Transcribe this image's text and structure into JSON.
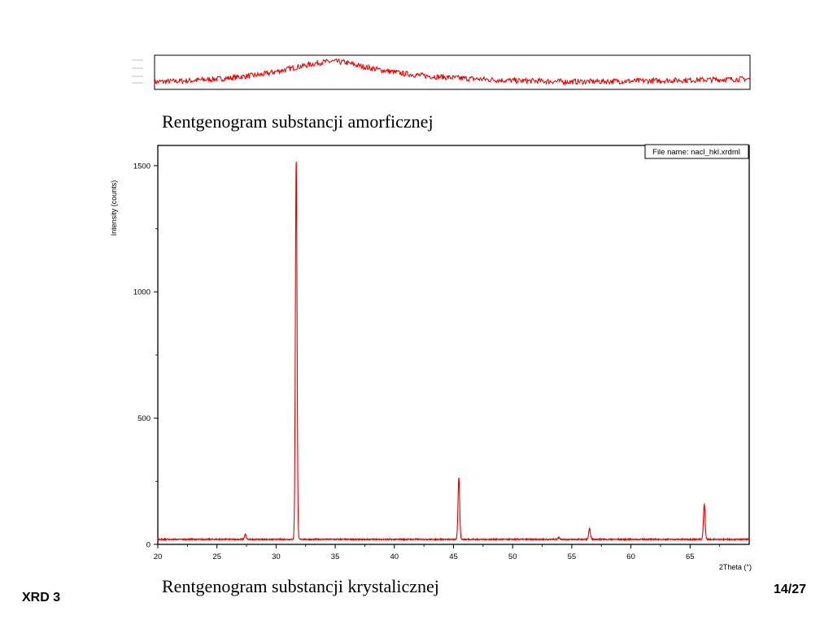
{
  "captions": {
    "amorphous": "Rentgenogram substancji amorficznej",
    "crystalline": "Rentgenogram substancji krystalicznej"
  },
  "footer": {
    "left": "XRD 3",
    "right": "14/27"
  },
  "colors": {
    "trace": "#e00000",
    "axis": "#000000",
    "background": "#ffffff"
  },
  "chart_data": [
    {
      "id": "amorphous",
      "type": "line",
      "description_free": true,
      "ylabel": "",
      "xlabel": "",
      "x": [
        20,
        23,
        26,
        29,
        31,
        33,
        34,
        35,
        36,
        37,
        39,
        41,
        43,
        46,
        50,
        55,
        60,
        65,
        70
      ],
      "y": [
        0.15,
        0.2,
        0.28,
        0.42,
        0.6,
        0.78,
        0.86,
        0.9,
        0.86,
        0.75,
        0.58,
        0.45,
        0.36,
        0.28,
        0.2,
        0.16,
        0.18,
        0.22,
        0.26
      ],
      "xlim": [
        20,
        70
      ],
      "ylim": [
        0,
        1
      ],
      "grid": false
    },
    {
      "id": "crystalline",
      "type": "line",
      "legend_box": "File name: nacl_hkl.xrdml",
      "xlabel": "2Theta (°)",
      "ylabel": "Intensity (counts)",
      "xlim": [
        20,
        70
      ],
      "ylim": [
        0,
        1500
      ],
      "x_ticks": [
        20,
        25,
        30,
        35,
        40,
        45,
        50,
        55,
        60,
        65
      ],
      "y_ticks": [
        0,
        500,
        1000,
        1500
      ],
      "baseline": 20,
      "peaks": [
        {
          "x": 27.4,
          "y": 40
        },
        {
          "x": 31.7,
          "y": 1525
        },
        {
          "x": 45.45,
          "y": 265
        },
        {
          "x": 53.9,
          "y": 28
        },
        {
          "x": 56.5,
          "y": 62
        },
        {
          "x": 66.2,
          "y": 160
        }
      ],
      "grid": false
    }
  ]
}
